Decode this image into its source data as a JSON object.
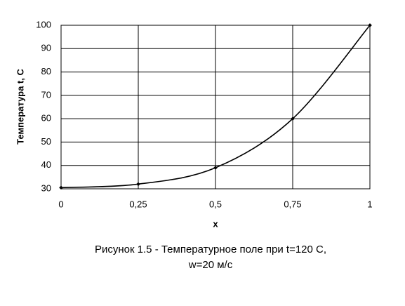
{
  "chart_data": {
    "type": "line",
    "x_label": "x",
    "y_label": "Температура t, C",
    "caption": [
      "Рисунок 1.5 - Температурное поле при t=120 С,",
      "w=20 м/с"
    ],
    "x": [
      0,
      0.25,
      0.5,
      0.75,
      1
    ],
    "values": [
      30.5,
      32,
      39,
      60,
      100
    ],
    "color": "#000000",
    "smooth": true,
    "grid": true,
    "xlim": [
      0,
      1
    ],
    "xticks": [
      0,
      {
        "value": 0.25,
        "label": "0,25"
      },
      {
        "value": 0.5,
        "label": "0,5"
      },
      {
        "value": 0.75,
        "label": "0,75"
      },
      1
    ],
    "ylim": [
      30,
      100
    ],
    "yticks": [
      30,
      40,
      50,
      60,
      70,
      80,
      90,
      100
    ]
  }
}
